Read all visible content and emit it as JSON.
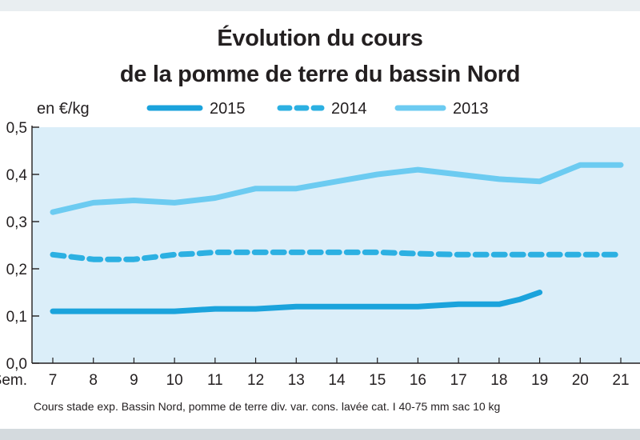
{
  "chart_data": {
    "type": "line",
    "title": "Évolution du cours",
    "subtitle": "de la pomme de terre du bassin Nord",
    "ylabel": "en €/kg",
    "xlabel": "Sem.",
    "ylim": [
      0,
      0.5
    ],
    "yticks": [
      "0,0",
      "0,1",
      "0,2",
      "0,3",
      "0,4",
      "0,5"
    ],
    "ytick_values": [
      0,
      0.1,
      0.2,
      0.3,
      0.4,
      0.5
    ],
    "x": [
      7,
      8,
      9,
      10,
      11,
      12,
      13,
      14,
      15,
      16,
      17,
      18,
      19,
      20,
      21
    ],
    "grid": false,
    "legend_position": "top",
    "series": [
      {
        "name": "2015",
        "style": "solid-thick",
        "color": "#1ba3dc",
        "x": [
          7,
          8,
          9,
          10,
          11,
          12,
          13,
          14,
          15,
          16,
          17,
          18,
          18.5,
          19
        ],
        "values": [
          0.11,
          0.11,
          0.11,
          0.11,
          0.115,
          0.115,
          0.12,
          0.12,
          0.12,
          0.12,
          0.125,
          0.125,
          0.135,
          0.15
        ]
      },
      {
        "name": "2014",
        "style": "dashed",
        "color": "#2cb0e2",
        "x": [
          7,
          7.5,
          8,
          8.5,
          9,
          9.5,
          10,
          10.5,
          11,
          12,
          13,
          14,
          15,
          16,
          17,
          18,
          19,
          20,
          21
        ],
        "values": [
          0.23,
          0.225,
          0.22,
          0.22,
          0.22,
          0.225,
          0.23,
          0.232,
          0.235,
          0.235,
          0.235,
          0.235,
          0.235,
          0.232,
          0.23,
          0.23,
          0.23,
          0.23,
          0.23
        ]
      },
      {
        "name": "2013",
        "style": "solid-light",
        "color": "#6ccbf1",
        "x": [
          7,
          8,
          9,
          10,
          11,
          12,
          13,
          14,
          15,
          16,
          17,
          18,
          19,
          20,
          21
        ],
        "values": [
          0.32,
          0.34,
          0.345,
          0.34,
          0.35,
          0.37,
          0.37,
          0.385,
          0.4,
          0.41,
          0.4,
          0.39,
          0.385,
          0.42,
          0.42
        ]
      }
    ],
    "source": "Cours stade exp. Bassin Nord, pomme de terre div. var. cons. lavée cat. I 40-75 mm sac 10 kg",
    "colors": {
      "plot_background": "#dbeef9",
      "axis": "#231f20"
    }
  }
}
